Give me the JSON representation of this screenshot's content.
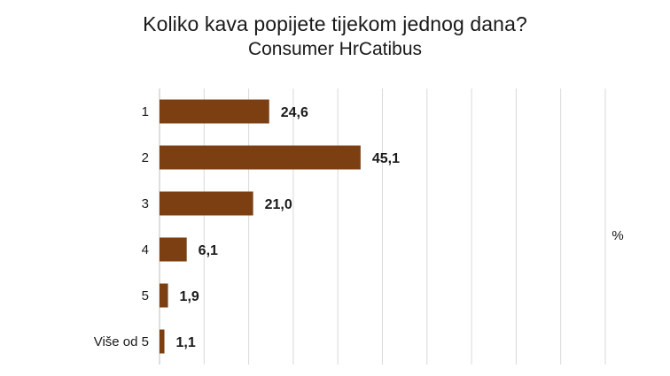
{
  "chart_data": {
    "type": "bar",
    "orientation": "horizontal",
    "title": "Koliko kava popijete tijekom jednog dana?",
    "subtitle": "Consumer HrCatibus",
    "categories": [
      "1",
      "2",
      "3",
      "4",
      "5",
      "Više od 5"
    ],
    "values": [
      24.6,
      45.1,
      21.0,
      6.1,
      1.9,
      1.1
    ],
    "value_labels": [
      "24,6",
      "45,1",
      "21,0",
      "6,1",
      "1,9",
      "1,1"
    ],
    "unit_label": "%",
    "xlim": [
      0,
      100
    ],
    "grid": true,
    "legend": "none",
    "bar_color": "#7b3f12",
    "grid_color": "#d9d9d9"
  }
}
